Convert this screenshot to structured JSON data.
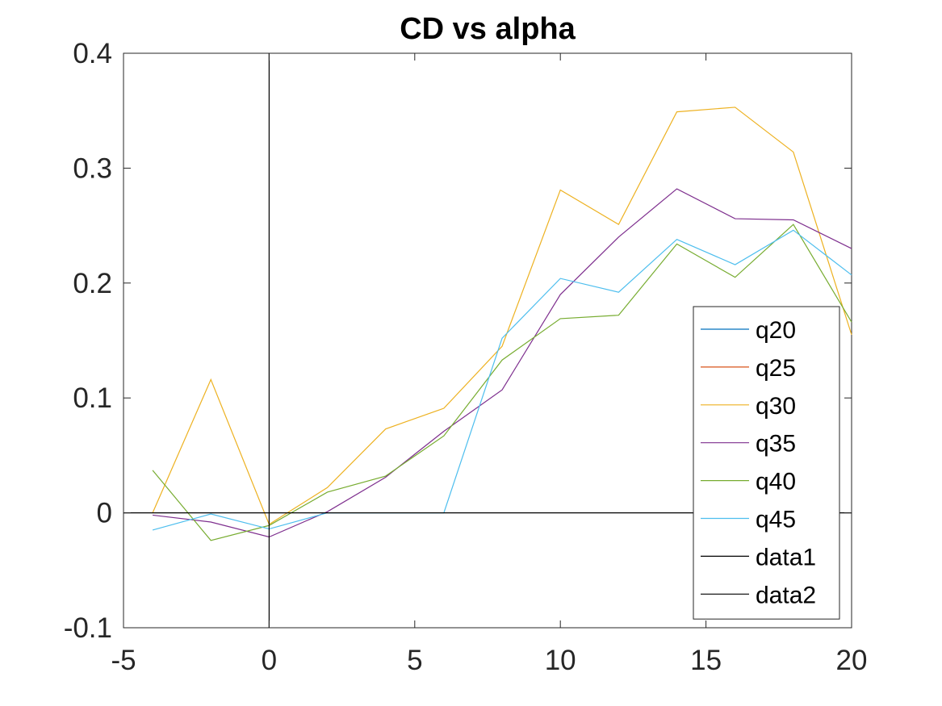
{
  "chart_data": {
    "type": "line",
    "title": "CD vs alpha",
    "xlabel": "",
    "ylabel": "",
    "xlim": [
      -5,
      20
    ],
    "ylim": [
      -0.1,
      0.4
    ],
    "xticks": [
      -5,
      0,
      5,
      10,
      15,
      20
    ],
    "xtick_labels": [
      "-5",
      "0",
      "5",
      "10",
      "15",
      "20"
    ],
    "yticks": [
      -0.1,
      0,
      0.1,
      0.2,
      0.3,
      0.4
    ],
    "ytick_labels": [
      "-0.1",
      "0",
      "0.1",
      "0.2",
      "0.3",
      "0.4"
    ],
    "grid": false,
    "legend_position": "right",
    "series": [
      {
        "name": "q20",
        "color": "#0072BD",
        "points": []
      },
      {
        "name": "q25",
        "color": "#D95319",
        "points": []
      },
      {
        "name": "q30",
        "color": "#EDB120",
        "points": [
          [
            -4,
            0.0
          ],
          [
            -2,
            0.116
          ],
          [
            0,
            -0.01
          ],
          [
            2,
            0.022
          ],
          [
            4,
            0.073
          ],
          [
            6,
            0.091
          ],
          [
            8,
            0.145
          ],
          [
            10,
            0.281
          ],
          [
            12,
            0.251
          ],
          [
            14,
            0.349
          ],
          [
            16,
            0.353
          ],
          [
            18,
            0.314
          ],
          [
            20,
            0.155
          ]
        ]
      },
      {
        "name": "q35",
        "color": "#7E2F8E",
        "points": [
          [
            -4,
            -0.002
          ],
          [
            -2,
            -0.008
          ],
          [
            0,
            -0.021
          ],
          [
            2,
            0.001
          ],
          [
            4,
            0.031
          ],
          [
            6,
            0.071
          ],
          [
            8,
            0.107
          ],
          [
            10,
            0.19
          ],
          [
            12,
            0.24
          ],
          [
            14,
            0.282
          ],
          [
            16,
            0.256
          ],
          [
            18,
            0.255
          ],
          [
            20,
            0.23
          ]
        ]
      },
      {
        "name": "q40",
        "color": "#77AC30",
        "points": [
          [
            -4,
            0.037
          ],
          [
            -2,
            -0.024
          ],
          [
            0,
            -0.011
          ],
          [
            2,
            0.018
          ],
          [
            4,
            0.032
          ],
          [
            6,
            0.067
          ],
          [
            8,
            0.133
          ],
          [
            10,
            0.169
          ],
          [
            12,
            0.172
          ],
          [
            14,
            0.234
          ],
          [
            16,
            0.205
          ],
          [
            18,
            0.251
          ],
          [
            20,
            0.166
          ]
        ]
      },
      {
        "name": "q45",
        "color": "#4DBEEE",
        "points": [
          [
            -4,
            -0.015
          ],
          [
            -2,
            -0.001
          ],
          [
            0,
            -0.014
          ],
          [
            2,
            0.0
          ],
          [
            4,
            0.0
          ],
          [
            6,
            0.0
          ],
          [
            8,
            0.152
          ],
          [
            10,
            0.204
          ],
          [
            12,
            0.192
          ],
          [
            14,
            0.238
          ],
          [
            16,
            0.216
          ],
          [
            18,
            0.246
          ],
          [
            20,
            0.207
          ]
        ]
      },
      {
        "name": "data1",
        "color": "#000000",
        "points": [
          [
            -5,
            0
          ],
          [
            20,
            0
          ]
        ]
      },
      {
        "name": "data2",
        "color": "#000000",
        "points": [
          [
            0,
            -0.1
          ],
          [
            0,
            0.4
          ]
        ]
      }
    ]
  }
}
